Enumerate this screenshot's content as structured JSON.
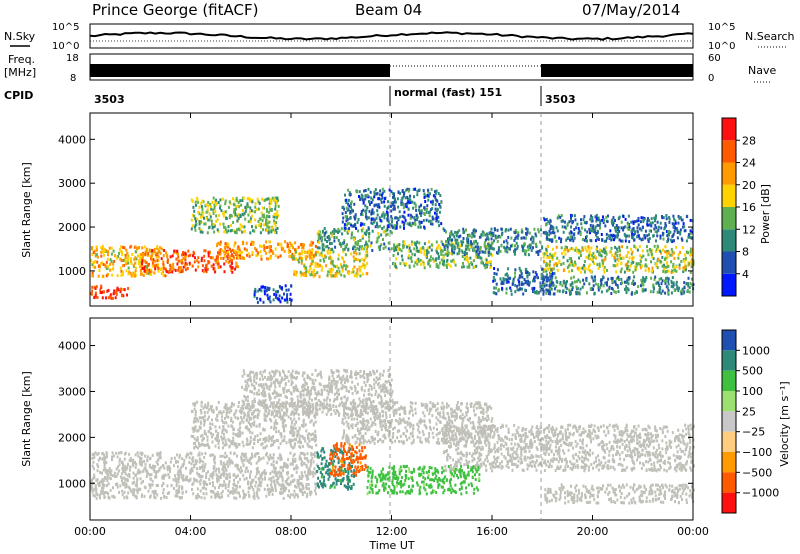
{
  "header": {
    "title": "Prince George (fitACF)",
    "beam": "Beam 04",
    "date": "07/May/2014"
  },
  "strip_labels": {
    "nsky": "N.Sky",
    "nsearch": "N.Search",
    "freq": "Freq.",
    "freq_unit": "[MHz]",
    "nave": "Nave",
    "cpid": "CPID"
  },
  "noise_axis": {
    "left_ticks": [
      "10^5",
      "10^0"
    ],
    "right_ticks": [
      "10^5",
      "10^0"
    ]
  },
  "freq_axis": {
    "left_ticks": [
      "18",
      "8"
    ],
    "right_ticks": [
      "60",
      "0"
    ]
  },
  "cpid_labels": [
    {
      "text": "3503",
      "start_hour": 0
    },
    {
      "text": "normal (fast)  151",
      "start_hour": 12
    },
    {
      "text": "3503",
      "start_hour": 18
    }
  ],
  "colors": {
    "power_scale": [
      "#0018ff",
      "#1f4fb0",
      "#2e8a78",
      "#5fb050",
      "#ffd200",
      "#ff9a00",
      "#ff5a00",
      "#ff1010"
    ],
    "velocity_scale": [
      "#ff1010",
      "#ff5a00",
      "#ff9a00",
      "#ffcc80",
      "#c8c8c8",
      "#9be070",
      "#40c040",
      "#2e8a78",
      "#1f4fb0"
    ],
    "ground_scatter": "#c0c0b8"
  },
  "chart_data": [
    {
      "type": "heatmap",
      "name": "power",
      "ylabel": "Slant Range [km]",
      "y_ticks": [
        "1000",
        "2000",
        "3000",
        "4000"
      ],
      "ylim": [
        200,
        4600
      ],
      "xlim_hours": [
        0,
        24
      ],
      "colorbar": {
        "label": "Power [dB]",
        "ticks": [
          "4",
          "8",
          "12",
          "16",
          "20",
          "24",
          "28"
        ],
        "range": [
          0,
          32
        ]
      },
      "bands": [
        {
          "h0": 0,
          "h1": 1.5,
          "r0": 400,
          "r1": 700,
          "value": 28
        },
        {
          "h0": 0,
          "h1": 3,
          "r0": 900,
          "r1": 1600,
          "value": 20
        },
        {
          "h0": 2,
          "h1": 6,
          "r0": 1000,
          "r1": 1500,
          "value": 26
        },
        {
          "h0": 5,
          "h1": 9,
          "r0": 1300,
          "r1": 1700,
          "value": 22
        },
        {
          "h0": 4,
          "h1": 7.5,
          "r0": 1900,
          "r1": 2700,
          "value": 14
        },
        {
          "h0": 8,
          "h1": 11,
          "r0": 900,
          "r1": 1500,
          "value": 18
        },
        {
          "h0": 9,
          "h1": 12,
          "r0": 1500,
          "r1": 2000,
          "value": 12
        },
        {
          "h0": 10,
          "h1": 14,
          "r0": 2000,
          "r1": 2900,
          "value": 8
        },
        {
          "h0": 12,
          "h1": 16,
          "r0": 1100,
          "r1": 1700,
          "value": 14
        },
        {
          "h0": 14,
          "h1": 18,
          "r0": 1400,
          "r1": 2000,
          "value": 10
        },
        {
          "h0": 16,
          "h1": 18.5,
          "r0": 500,
          "r1": 1100,
          "value": 8
        },
        {
          "h0": 18,
          "h1": 24,
          "r0": 1000,
          "r1": 1600,
          "value": 16
        },
        {
          "h0": 18,
          "h1": 24,
          "r0": 1700,
          "r1": 2300,
          "value": 8
        },
        {
          "h0": 18,
          "h1": 24,
          "r0": 500,
          "r1": 900,
          "value": 10
        },
        {
          "h0": 6.5,
          "h1": 8,
          "r0": 300,
          "r1": 700,
          "value": 6
        }
      ]
    },
    {
      "type": "heatmap",
      "name": "velocity",
      "xlabel": "Time UT",
      "ylabel": "Slant Range [km]",
      "y_ticks": [
        "1000",
        "2000",
        "3000",
        "4000"
      ],
      "ylim": [
        200,
        4600
      ],
      "xlim_hours": [
        0,
        24
      ],
      "x_ticks": [
        "00:00",
        "04:00",
        "08:00",
        "12:00",
        "16:00",
        "20:00",
        "00:00"
      ],
      "colorbar": {
        "label": "Velocity [m s⁻¹]",
        "ticks": [
          "1000",
          "500",
          "100",
          "25",
          "−25",
          "−100",
          "−500",
          "−1000"
        ]
      },
      "bands": [
        {
          "h0": 0,
          "h1": 9,
          "r0": 700,
          "r1": 1700,
          "value": "ground"
        },
        {
          "h0": 4,
          "h1": 9,
          "r0": 1800,
          "r1": 2800,
          "value": "ground"
        },
        {
          "h0": 6,
          "h1": 12,
          "r0": 2500,
          "r1": 3500,
          "value": "ground"
        },
        {
          "h0": 10,
          "h1": 16,
          "r0": 1900,
          "r1": 2800,
          "value": "ground"
        },
        {
          "h0": 14,
          "h1": 24,
          "r0": 1300,
          "r1": 2300,
          "value": "ground"
        },
        {
          "h0": 18,
          "h1": 24,
          "r0": 600,
          "r1": 1000,
          "value": "ground"
        },
        {
          "h0": 9,
          "h1": 10.5,
          "r0": 900,
          "r1": 1800,
          "value": 500
        },
        {
          "h0": 9.5,
          "h1": 11,
          "r0": 1200,
          "r1": 1900,
          "value": -300
        },
        {
          "h0": 11,
          "h1": 15.5,
          "r0": 800,
          "r1": 1400,
          "value": 150
        }
      ]
    }
  ]
}
